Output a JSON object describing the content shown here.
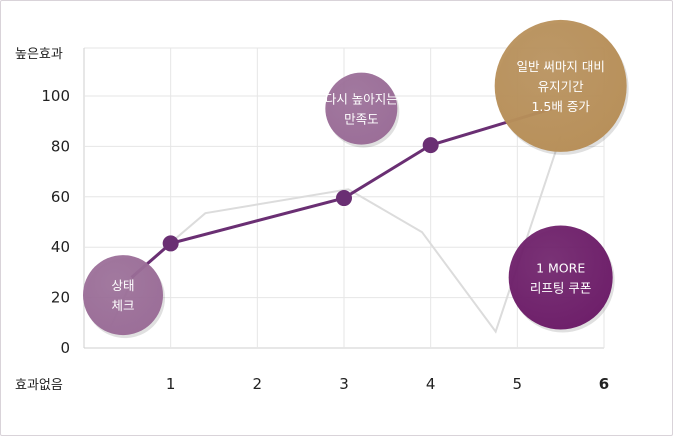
{
  "chart_data": {
    "type": "line",
    "ylabel": "높은효과",
    "xlabel": "효과없음",
    "ylim": [
      0,
      100
    ],
    "yticks": [
      0,
      20,
      40,
      60,
      80,
      100
    ],
    "xlim": [
      0,
      6
    ],
    "xticks": [
      1,
      2,
      3,
      4,
      5,
      6
    ],
    "highlight_tick": 6,
    "grid": true,
    "colors": {
      "main": "#6a2f73",
      "secondary": "#dcdcdc",
      "highlight_tick": "#6a2f73",
      "grid": "#e6e6e6"
    },
    "series": [
      {
        "x": [
          0.55,
          1,
          3,
          4,
          5.5
        ],
        "y": [
          28,
          41.5,
          59.5,
          80.5,
          96
        ]
      },
      {
        "x": [
          0.3,
          0.6,
          1.4,
          3.05,
          3.9,
          4.75,
          5.5
        ],
        "y": [
          8,
          30,
          53.5,
          63,
          46,
          6.5,
          84
        ]
      }
    ],
    "annotations": [
      {
        "lines": [
          "상태",
          "체크"
        ],
        "x": 0.45,
        "y": 21,
        "color": "#9b6e98"
      },
      {
        "lines": [
          "다시 높아지는",
          "만족도"
        ],
        "x": 3.2,
        "y": 95,
        "color": "#9b6e98"
      },
      {
        "lines": [
          "일반 써마지 대비",
          "유지기간",
          "1.5배 증가"
        ],
        "x": 5.5,
        "y": 104,
        "color": "#b8905a"
      },
      {
        "lines": [
          "1 MORE",
          "리프팅 쿠폰"
        ],
        "x": 5.5,
        "y": 28,
        "color": "#6e1f6a"
      }
    ]
  }
}
